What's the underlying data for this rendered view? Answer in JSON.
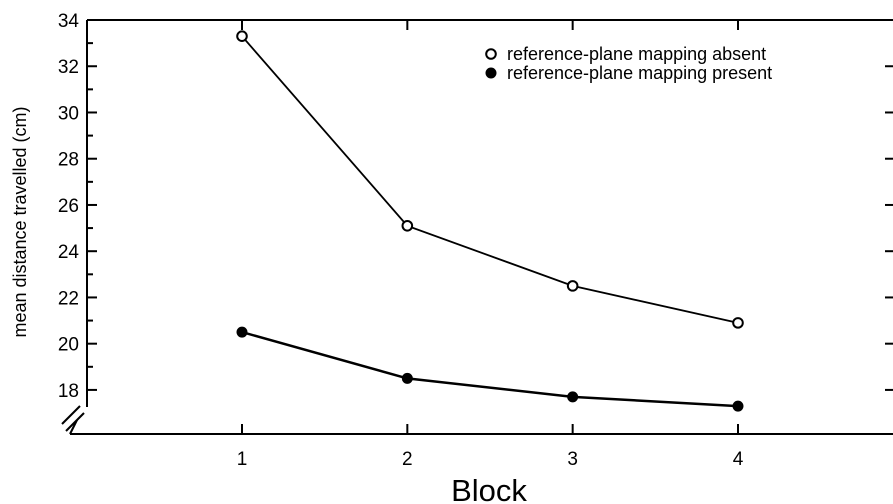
{
  "chart_data": {
    "type": "line",
    "title": "",
    "xlabel": "Block",
    "ylabel": "mean distance travelled (cm)",
    "x": [
      1,
      2,
      3,
      4
    ],
    "x_tick_labels": [
      "1",
      "2",
      "3",
      "4"
    ],
    "y_tick_labels": [
      "18",
      "20",
      "22",
      "24",
      "26",
      "28",
      "30",
      "32",
      "34"
    ],
    "ylim": [
      17.5,
      34
    ],
    "xlim": [
      0,
      5
    ],
    "axis_break_on_y": true,
    "grid": false,
    "legend_position": "top-right",
    "series": [
      {
        "name": "reference-plane mapping absent",
        "marker": "open-circle",
        "values": [
          33.3,
          25.1,
          22.5,
          20.9
        ]
      },
      {
        "name": "reference-plane mapping present",
        "marker": "filled-circle",
        "values": [
          20.5,
          18.5,
          17.7,
          17.3
        ]
      }
    ]
  }
}
